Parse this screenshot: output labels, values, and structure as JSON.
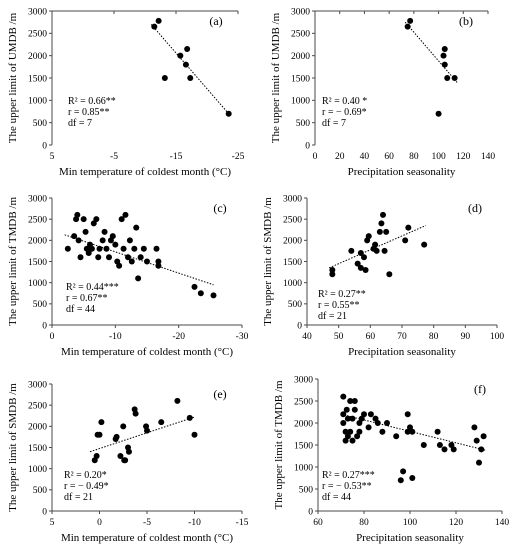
{
  "chart_data": [
    {
      "id": "a",
      "type": "scatter",
      "panel_label": "(a)",
      "xlabel": "Min temperature  of coldest month (°C)",
      "ylabel": "The upper limit of UMDB /m",
      "xlim": [
        5,
        -25
      ],
      "ylim": [
        0,
        3000
      ],
      "x_ticks": [
        5,
        -5,
        -15,
        -25
      ],
      "x_tick_labels": [
        "5",
        "-5",
        "-15",
        "-25"
      ],
      "y_ticks": [
        0,
        500,
        1000,
        1500,
        2000,
        2500,
        3000
      ],
      "y_tick_labels": [
        "0",
        "500",
        "1000",
        "1500",
        "2000",
        "2500",
        "3000"
      ],
      "points": [
        [
          -11.5,
          2650
        ],
        [
          -12.2,
          2780
        ],
        [
          -13.2,
          1500
        ],
        [
          -15.7,
          2000
        ],
        [
          -16.8,
          2150
        ],
        [
          -16.6,
          1800
        ],
        [
          -17.3,
          1500
        ],
        [
          -23.5,
          700
        ]
      ],
      "trend": [
        [
          -11.0,
          2700
        ],
        [
          -23.5,
          700
        ]
      ],
      "stats": [
        "R² = 0.66**",
        "r = 0.85**",
        "df = 7"
      ]
    },
    {
      "id": "b",
      "type": "scatter",
      "panel_label": "(b)",
      "xlabel": "Precipitation seasonality",
      "ylabel": "The upper limit of UMDB /m",
      "xlim": [
        0,
        140
      ],
      "ylim": [
        0,
        3000
      ],
      "x_ticks": [
        0,
        20,
        40,
        60,
        80,
        100,
        120,
        140
      ],
      "x_tick_labels": [
        "0",
        "20",
        "40",
        "60",
        "80",
        "100",
        "120",
        "140"
      ],
      "y_ticks": [
        0,
        500,
        1000,
        1500,
        2000,
        2500,
        3000
      ],
      "y_tick_labels": [
        "0",
        "500",
        "1000",
        "1500",
        "2000",
        "2500",
        "3000"
      ],
      "points": [
        [
          75,
          2650
        ],
        [
          77,
          2780
        ],
        [
          100,
          700
        ],
        [
          105,
          2150
        ],
        [
          104,
          2000
        ],
        [
          105,
          1800
        ],
        [
          107,
          1500
        ],
        [
          113,
          1500
        ]
      ],
      "trend": [
        [
          73,
          2750
        ],
        [
          115,
          1400
        ]
      ],
      "stats": [
        "R² = 0.40 *",
        "r = − 0.69*",
        "df = 7"
      ]
    },
    {
      "id": "c",
      "type": "scatter",
      "panel_label": "(c)",
      "xlabel": "Min temperature  of coldest month (°C)",
      "ylabel": "The upper limit of TMDB /m",
      "xlim": [
        0,
        -30
      ],
      "ylim": [
        0,
        3000
      ],
      "x_ticks": [
        0,
        -10,
        -20,
        -30
      ],
      "x_tick_labels": [
        "0",
        "-10",
        "-20",
        "-30"
      ],
      "y_ticks": [
        0,
        500,
        1000,
        1500,
        2000,
        2500,
        3000
      ],
      "y_tick_labels": [
        "0",
        "500",
        "1000",
        "1500",
        "2000",
        "2500",
        "3000"
      ],
      "points": [
        [
          -2.5,
          1800
        ],
        [
          -3.5,
          2100
        ],
        [
          -3.8,
          2500
        ],
        [
          -4,
          2600
        ],
        [
          -4.2,
          2000
        ],
        [
          -4.5,
          1600
        ],
        [
          -5,
          2500
        ],
        [
          -5.3,
          2200
        ],
        [
          -5.5,
          1800
        ],
        [
          -5.8,
          1700
        ],
        [
          -6,
          1900
        ],
        [
          -6.3,
          1800
        ],
        [
          -6.6,
          2400
        ],
        [
          -7,
          2500
        ],
        [
          -7.3,
          1600
        ],
        [
          -7.5,
          1800
        ],
        [
          -8,
          2000
        ],
        [
          -8.3,
          2200
        ],
        [
          -8.6,
          1800
        ],
        [
          -9,
          1600
        ],
        [
          -9.3,
          2000
        ],
        [
          -9.6,
          2100
        ],
        [
          -10,
          1900
        ],
        [
          -10.3,
          1500
        ],
        [
          -10.6,
          1400
        ],
        [
          -11,
          2500
        ],
        [
          -11.3,
          1800
        ],
        [
          -11.6,
          2600
        ],
        [
          -12,
          1600
        ],
        [
          -12.3,
          2000
        ],
        [
          -12.6,
          1500
        ],
        [
          -13,
          1800
        ],
        [
          -13.3,
          2300
        ],
        [
          -13.6,
          1100
        ],
        [
          -14,
          1600
        ],
        [
          -14.5,
          1800
        ],
        [
          -15,
          1500
        ],
        [
          -16.5,
          1800
        ],
        [
          -16.8,
          1500
        ],
        [
          -16.8,
          1400
        ],
        [
          -22.5,
          900
        ],
        [
          -23.5,
          750
        ],
        [
          -25.5,
          700
        ]
      ],
      "trend": [
        [
          -2,
          2130
        ],
        [
          -25.5,
          950
        ]
      ],
      "stats": [
        "R² = 0.44***",
        "r = 0.67**",
        "df = 44"
      ]
    },
    {
      "id": "d",
      "type": "scatter",
      "panel_label": "(d)",
      "xlabel": "Precipitation seasonality",
      "ylabel": "The upper limit of SMDB /m",
      "xlim": [
        40,
        100
      ],
      "ylim": [
        0,
        3000
      ],
      "x_ticks": [
        40,
        50,
        60,
        70,
        80,
        90,
        100
      ],
      "x_tick_labels": [
        "40",
        "50",
        "60",
        "70",
        "80",
        "90",
        "100"
      ],
      "y_ticks": [
        0,
        500,
        1000,
        1500,
        2000,
        2500,
        3000
      ],
      "y_tick_labels": [
        "0",
        "500",
        "1000",
        "1500",
        "2000",
        "2500",
        "3000"
      ],
      "points": [
        [
          48,
          1200
        ],
        [
          48,
          1300
        ],
        [
          54,
          1750
        ],
        [
          56,
          1450
        ],
        [
          57,
          1350
        ],
        [
          57,
          1700
        ],
        [
          58,
          1600
        ],
        [
          58.5,
          1300
        ],
        [
          59,
          2000
        ],
        [
          59.5,
          2100
        ],
        [
          61,
          1800
        ],
        [
          61.5,
          1900
        ],
        [
          62,
          1750
        ],
        [
          63,
          2200
        ],
        [
          63.5,
          2400
        ],
        [
          64,
          2600
        ],
        [
          64.5,
          1750
        ],
        [
          65,
          2200
        ],
        [
          66,
          1200
        ],
        [
          71,
          2000
        ],
        [
          72,
          2300
        ],
        [
          77,
          1900
        ]
      ],
      "trend": [
        [
          47,
          1350
        ],
        [
          77.5,
          2350
        ]
      ],
      "stats": [
        "R² = 0.27**",
        "r = 0.55**",
        "df = 21"
      ]
    },
    {
      "id": "e",
      "type": "scatter",
      "panel_label": "(e)",
      "xlabel": "Min temperature  of coldest month (°C)",
      "ylabel": "The upper limit of SMDB /m",
      "xlim": [
        5,
        -15
      ],
      "ylim": [
        0,
        3000
      ],
      "x_ticks": [
        5,
        0,
        -5,
        -10,
        -15
      ],
      "x_tick_labels": [
        "5",
        "0",
        "-5",
        "-10",
        "-15"
      ],
      "y_ticks": [
        0,
        500,
        1000,
        1500,
        2000,
        2500,
        3000
      ],
      "y_tick_labels": [
        "0",
        "500",
        "1000",
        "1500",
        "2000",
        "2500",
        "3000"
      ],
      "points": [
        [
          0.3,
          1300
        ],
        [
          0.2,
          1800
        ],
        [
          0,
          1800
        ],
        [
          -0.2,
          2100
        ],
        [
          0.5,
          1200
        ],
        [
          -1.7,
          1700
        ],
        [
          -1.8,
          1750
        ],
        [
          -2.2,
          1300
        ],
        [
          -2.5,
          2000
        ],
        [
          -2.6,
          1200
        ],
        [
          -2.7,
          1200
        ],
        [
          -3,
          1500
        ],
        [
          -3.1,
          1400
        ],
        [
          -3.7,
          2400
        ],
        [
          -3.8,
          2300
        ],
        [
          -4.9,
          2000
        ],
        [
          -5,
          1900
        ],
        [
          -6.5,
          2100
        ],
        [
          -8.2,
          2600
        ],
        [
          -9.5,
          2200
        ],
        [
          -10,
          1800
        ]
      ],
      "trend": [
        [
          1,
          1400
        ],
        [
          -10,
          2220
        ]
      ],
      "stats": [
        "R² = 0.20*",
        "r = − 0.49*",
        "df = 21"
      ]
    },
    {
      "id": "f",
      "type": "scatter",
      "panel_label": "(f)",
      "xlabel": "Precipitation seasonality",
      "ylabel": "The upper limit of TMDB /m",
      "xlim": [
        60,
        140
      ],
      "ylim": [
        0,
        3000
      ],
      "x_ticks": [
        60,
        80,
        100,
        120,
        140
      ],
      "x_tick_labels": [
        "60",
        "80",
        "100",
        "120",
        "140"
      ],
      "y_ticks": [
        0,
        500,
        1000,
        1500,
        2000,
        2500,
        3000
      ],
      "y_tick_labels": [
        "0",
        "500",
        "1000",
        "1500",
        "2000",
        "2500",
        "3000"
      ],
      "points": [
        [
          71,
          2600
        ],
        [
          71,
          2200
        ],
        [
          71,
          2000
        ],
        [
          72,
          1800
        ],
        [
          72,
          1600
        ],
        [
          72.5,
          2300
        ],
        [
          73,
          2100
        ],
        [
          73,
          1700
        ],
        [
          74,
          2500
        ],
        [
          74,
          1800
        ],
        [
          75,
          2100
        ],
        [
          75,
          1600
        ],
        [
          76,
          2500
        ],
        [
          76,
          2300
        ],
        [
          77,
          1700
        ],
        [
          78,
          2000
        ],
        [
          78,
          1800
        ],
        [
          79,
          2100
        ],
        [
          80,
          2200
        ],
        [
          82,
          1900
        ],
        [
          83,
          2200
        ],
        [
          85,
          2100
        ],
        [
          86,
          2000
        ],
        [
          88,
          1800
        ],
        [
          90,
          2000
        ],
        [
          94,
          1700
        ],
        [
          96,
          700
        ],
        [
          97,
          900
        ],
        [
          99,
          1800
        ],
        [
          99,
          2200
        ],
        [
          100,
          1900
        ],
        [
          101,
          1800
        ],
        [
          101,
          750
        ],
        [
          106,
          1500
        ],
        [
          112,
          1800
        ],
        [
          113,
          1500
        ],
        [
          115,
          1400
        ],
        [
          118,
          1500
        ],
        [
          119,
          1400
        ],
        [
          128,
          1900
        ],
        [
          129,
          1600
        ],
        [
          130,
          1100
        ],
        [
          131,
          1400
        ],
        [
          132,
          1700
        ]
      ],
      "trend": [
        [
          70,
          2200
        ],
        [
          133,
          1380
        ]
      ],
      "stats": [
        "R² = 0.27***",
        "r = − 0.53**",
        "df = 44"
      ]
    }
  ]
}
